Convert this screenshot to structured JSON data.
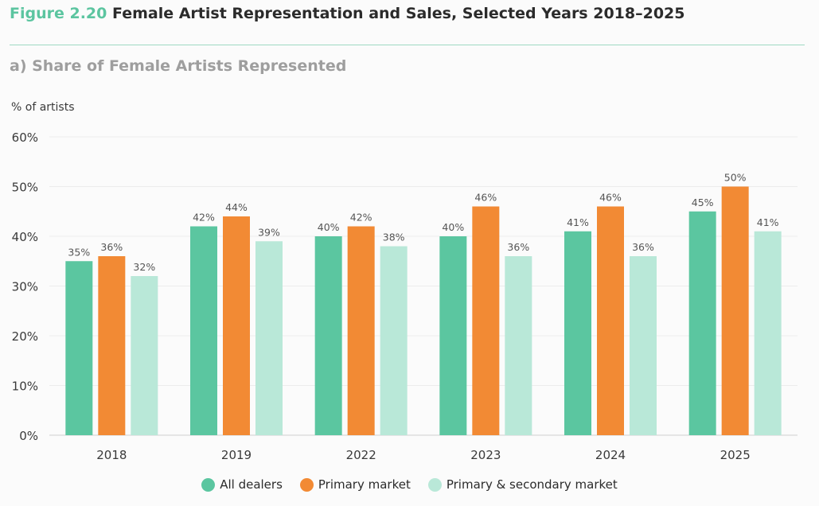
{
  "header": {
    "fig_number": "Figure 2.20",
    "title": "Female Artist Representation and Sales, Selected Years 2018–2025"
  },
  "subtitle": "a) Share of Female Artists Represented",
  "ylabel": "% of artists",
  "colors": {
    "all_dealers": "#5bc6a0",
    "primary": "#f28a34",
    "primary_secondary": "#b9e8d8"
  },
  "chart_data": {
    "type": "bar",
    "categories": [
      "2018",
      "2019",
      "2022",
      "2023",
      "2024",
      "2025"
    ],
    "series": [
      {
        "name": "All dealers",
        "values": [
          35,
          42,
          40,
          40,
          41,
          45
        ]
      },
      {
        "name": "Primary market",
        "values": [
          36,
          44,
          42,
          46,
          46,
          50
        ]
      },
      {
        "name": "Primary & secondary market",
        "values": [
          32,
          39,
          38,
          36,
          36,
          41
        ]
      }
    ],
    "ylim": [
      0,
      60
    ],
    "yticks": [
      "0%",
      "10%",
      "20%",
      "30%",
      "40%",
      "50%",
      "60%"
    ],
    "grid": true,
    "legend": "bottom"
  }
}
